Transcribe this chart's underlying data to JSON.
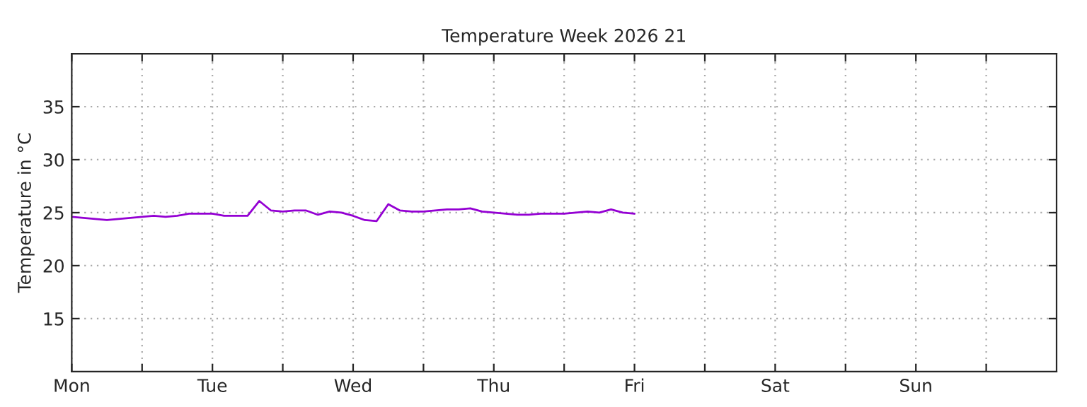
{
  "chart_data": {
    "type": "line",
    "title": "Temperature Week 2026 21",
    "ylabel": "Temperature in °C",
    "categories": [
      "Mon",
      null,
      null,
      null,
      null,
      null,
      null,
      null,
      null,
      null,
      null,
      null,
      "Tue",
      null,
      null,
      null,
      null,
      null,
      null,
      null,
      null,
      null,
      null,
      null,
      "Wed",
      null,
      null,
      null,
      null,
      null,
      null,
      null,
      null,
      null,
      null,
      null,
      "Thu",
      null,
      null,
      null,
      null,
      null,
      null,
      null,
      null,
      null,
      null,
      null,
      "Fri",
      null,
      null,
      null,
      null,
      null,
      null,
      null,
      null,
      null,
      null,
      null,
      "Sat",
      null,
      null,
      null,
      null,
      null,
      null,
      null,
      null,
      null,
      null,
      null,
      "Sun",
      null,
      null,
      null,
      null,
      null,
      null,
      null,
      null,
      null,
      null,
      null
    ],
    "series": [
      {
        "color": "#9400d3",
        "values": [
          24.6,
          24.5,
          24.4,
          24.3,
          24.4,
          24.5,
          24.6,
          24.7,
          24.6,
          24.7,
          24.9,
          24.9,
          24.9,
          24.7,
          24.7,
          24.7,
          26.1,
          25.2,
          25.1,
          25.2,
          25.2,
          24.8,
          25.1,
          25.0,
          24.7,
          24.3,
          24.2,
          25.8,
          25.2,
          25.1,
          25.1,
          25.2,
          25.3,
          25.3,
          25.4,
          25.1,
          25.0,
          24.9,
          24.8,
          24.8,
          24.9,
          24.9,
          24.9,
          25.0,
          25.1,
          25.0,
          25.3,
          25.0,
          24.9,
          null,
          null,
          null,
          null,
          null,
          null,
          null,
          null,
          null,
          null,
          null,
          null,
          null,
          null,
          null,
          null,
          null,
          null,
          null,
          null,
          null,
          null,
          null,
          null,
          null,
          null,
          null,
          null,
          null,
          null,
          null,
          null,
          null,
          null,
          null
        ]
      }
    ],
    "ylim": [
      10,
      40
    ],
    "yticks": [
      15,
      20,
      25,
      30,
      35
    ],
    "grid": true,
    "legend": false,
    "marker": "none",
    "line_style": "solid"
  }
}
